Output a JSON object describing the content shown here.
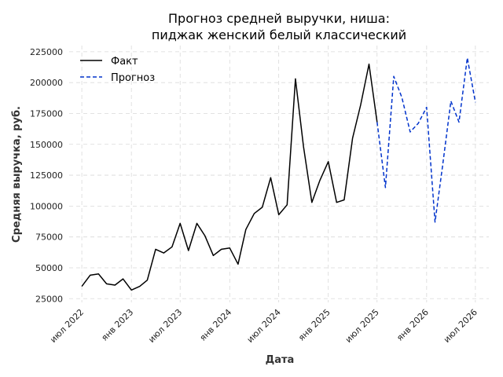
{
  "chart_data": {
    "type": "line",
    "title": "Прогноз средней выручки, ниша:",
    "subtitle": "пиджак женский белый классический",
    "xlabel": "Дата",
    "ylabel": "Средняя выручка, руб.",
    "ylim": [
      22000,
      230000
    ],
    "xlim": [
      "2022-05-15",
      "2026-08-20"
    ],
    "grid": true,
    "legend": "top-left",
    "y_ticks": [
      25000,
      50000,
      75000,
      100000,
      125000,
      150000,
      175000,
      200000,
      225000
    ],
    "x_ticks": [
      {
        "label": "июл 2022",
        "date": "2022-07-01"
      },
      {
        "label": "янв 2023",
        "date": "2023-01-01"
      },
      {
        "label": "июл 2023",
        "date": "2023-07-01"
      },
      {
        "label": "янв 2024",
        "date": "2024-01-01"
      },
      {
        "label": "июл 2024",
        "date": "2024-07-01"
      },
      {
        "label": "янв 2025",
        "date": "2025-01-01"
      },
      {
        "label": "июл 2025",
        "date": "2025-07-01"
      },
      {
        "label": "янв 2026",
        "date": "2026-01-01"
      },
      {
        "label": "июл 2026",
        "date": "2026-07-01"
      }
    ],
    "series": [
      {
        "name": "Факт",
        "color": "#000000",
        "style": "solid",
        "x": [
          "2022-07-01",
          "2022-08-01",
          "2022-09-01",
          "2022-10-01",
          "2022-11-01",
          "2022-12-01",
          "2023-01-01",
          "2023-02-01",
          "2023-03-01",
          "2023-04-01",
          "2023-05-01",
          "2023-06-01",
          "2023-07-01",
          "2023-08-01",
          "2023-09-01",
          "2023-10-01",
          "2023-11-01",
          "2023-12-01",
          "2024-01-01",
          "2024-02-01",
          "2024-03-01",
          "2024-04-01",
          "2024-05-01",
          "2024-06-01",
          "2024-07-01",
          "2024-08-01",
          "2024-09-01",
          "2024-10-01",
          "2024-11-01",
          "2024-12-01",
          "2025-01-01",
          "2025-02-01",
          "2025-03-01",
          "2025-04-01",
          "2025-05-01",
          "2025-06-01",
          "2025-07-01"
        ],
        "y": [
          35000,
          44000,
          45000,
          37000,
          36000,
          41000,
          32000,
          35000,
          40000,
          65000,
          62000,
          67000,
          86000,
          64000,
          86000,
          76000,
          60000,
          65000,
          66000,
          53000,
          81000,
          94000,
          99000,
          123000,
          93000,
          101000,
          203000,
          148000,
          103000,
          121000,
          136000,
          103000,
          105000,
          155000,
          182000,
          215000,
          168000
        ]
      },
      {
        "name": "Прогноз",
        "color": "#0033cc",
        "style": "dashed",
        "x": [
          "2025-07-01",
          "2025-08-01",
          "2025-09-01",
          "2025-10-01",
          "2025-11-01",
          "2025-12-01",
          "2026-01-01",
          "2026-02-01",
          "2026-03-01",
          "2026-04-01",
          "2026-05-01",
          "2026-06-01",
          "2026-07-01"
        ],
        "y": [
          168000,
          115000,
          205000,
          188000,
          160000,
          167000,
          180000,
          87000,
          132000,
          185000,
          168000,
          220000,
          184000
        ]
      }
    ]
  }
}
